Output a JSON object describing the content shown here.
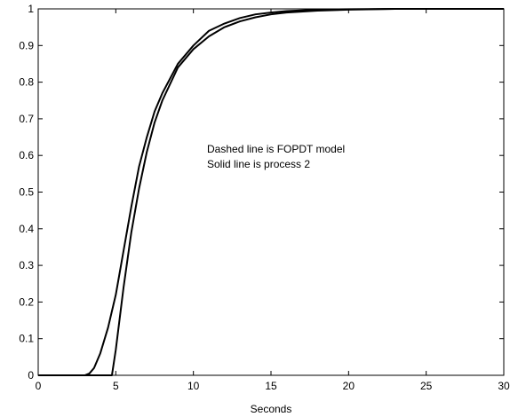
{
  "chart_data": {
    "type": "line",
    "title": "",
    "xlabel": "Seconds",
    "ylabel": "",
    "xlim": [
      0,
      30
    ],
    "ylim": [
      0,
      1
    ],
    "xticks": [
      "0",
      "5",
      "10",
      "15",
      "20",
      "25",
      "30"
    ],
    "yticks": [
      "0",
      "0.1",
      "0.2",
      "0.3",
      "0.4",
      "0.5",
      "0.6",
      "0.7",
      "0.8",
      "0.9",
      "1"
    ],
    "grid": false,
    "annotations": [
      "Dashed line is FOPDT model",
      "Solid line is process 2"
    ],
    "series": [
      {
        "x": [
          0,
          3,
          3.3,
          3.6,
          4,
          4.5,
          5,
          5.5,
          6,
          6.5,
          7,
          7.5,
          8,
          9,
          10,
          11,
          12,
          13,
          14,
          15,
          16,
          18,
          20,
          23,
          25,
          30
        ],
        "y": [
          0,
          0,
          0.005,
          0.02,
          0.06,
          0.13,
          0.22,
          0.34,
          0.46,
          0.57,
          0.65,
          0.72,
          0.77,
          0.85,
          0.9,
          0.94,
          0.96,
          0.975,
          0.985,
          0.99,
          0.994,
          0.998,
          0.999,
          1.0,
          1.0,
          1.0
        ],
        "color": "#000000"
      },
      {
        "x": [
          0,
          4.75,
          5,
          5.5,
          6,
          6.5,
          7,
          7.5,
          8,
          9,
          10,
          11,
          12,
          13,
          14,
          15,
          16,
          18,
          20,
          23,
          25,
          30
        ],
        "y": [
          0,
          0,
          0.07,
          0.24,
          0.39,
          0.51,
          0.61,
          0.69,
          0.75,
          0.84,
          0.89,
          0.925,
          0.95,
          0.966,
          0.977,
          0.985,
          0.99,
          0.995,
          0.998,
          1.0,
          1.0,
          1.0
        ],
        "color": "#000000"
      }
    ]
  }
}
